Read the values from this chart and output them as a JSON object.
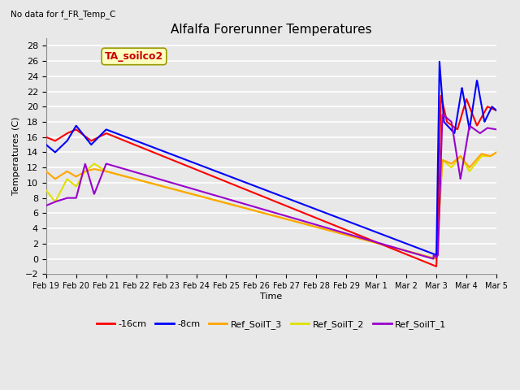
{
  "title": "Alfalfa Forerunner Temperatures",
  "subtitle": "No data for f_FR_Temp_C",
  "ylabel": "Temperatures (C)",
  "xlabel": "Time",
  "legend_label": "TA_soilco2",
  "ylim": [
    -2,
    29
  ],
  "yticks": [
    -2,
    0,
    2,
    4,
    6,
    8,
    10,
    12,
    14,
    16,
    18,
    20,
    22,
    24,
    26,
    28
  ],
  "xtick_labels": [
    "Feb 19",
    "Feb 20",
    "Feb 21",
    "Feb 22",
    "Feb 23",
    "Feb 24",
    "Feb 25",
    "Feb 26",
    "Feb 27",
    "Feb 28",
    "Feb 29",
    "Mar 1",
    "Mar 2",
    "Mar 3",
    "Mar 4",
    "Mar 5"
  ],
  "colors": {
    "red": "#FF0000",
    "blue": "#0000FF",
    "orange": "#FFA500",
    "yellow": "#E0E000",
    "purple": "#9900CC",
    "bg": "#E8E8E8"
  },
  "legend_items": [
    {
      "label": "-16cm",
      "color": "#FF0000"
    },
    {
      "label": "-8cm",
      "color": "#0000FF"
    },
    {
      "label": "Ref_SoilT_3",
      "color": "#FFA500"
    },
    {
      "label": "Ref_SoilT_2",
      "color": "#E0E000"
    },
    {
      "label": "Ref_SoilT_1",
      "color": "#9900CC"
    }
  ]
}
